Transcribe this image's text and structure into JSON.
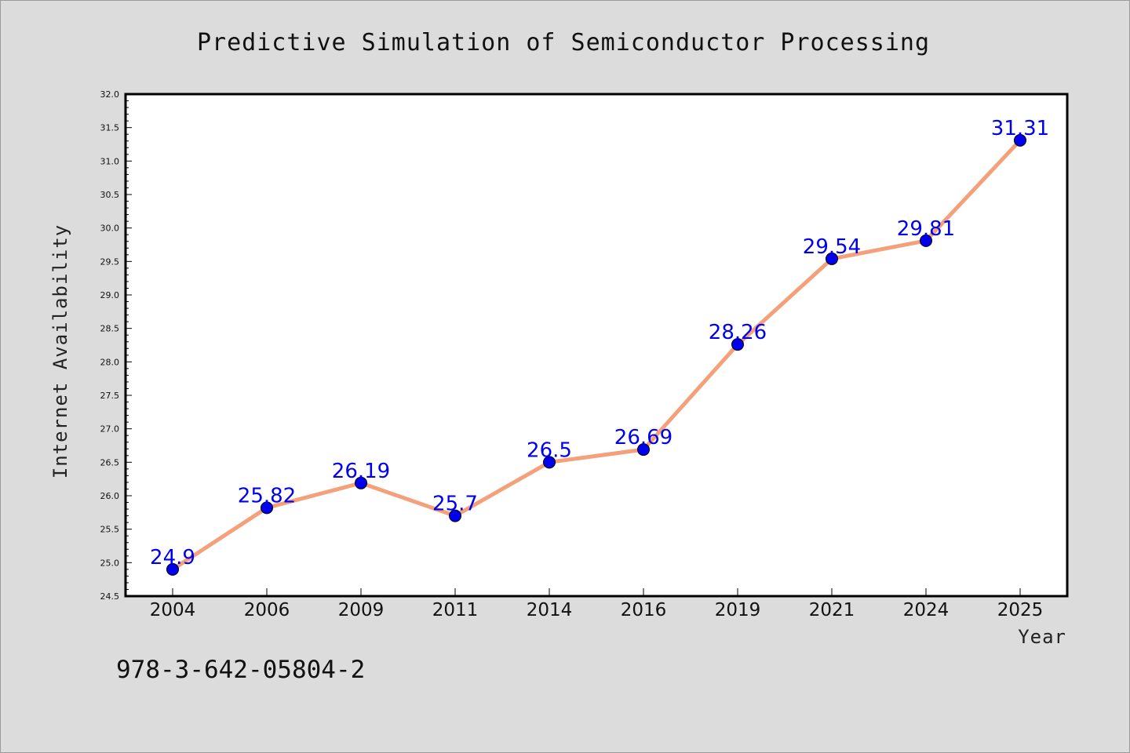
{
  "chart_data": {
    "type": "line",
    "title": "Predictive Simulation of Semiconductor Processing",
    "xlabel": "Year",
    "ylabel": "Internet Availability",
    "categories": [
      "2004",
      "2006",
      "2009",
      "2011",
      "2014",
      "2016",
      "2019",
      "2021",
      "2024",
      "2025"
    ],
    "values": [
      24.9,
      25.82,
      26.19,
      25.7,
      26.5,
      26.69,
      28.26,
      29.54,
      29.81,
      31.31
    ],
    "data_labels": [
      "24.9",
      "25.82",
      "26.19",
      "25.7",
      "26.5",
      "26.69",
      "28.26",
      "29.54",
      "29.81",
      "31.31"
    ],
    "yticks": [
      "24.5",
      "25.0",
      "25.5",
      "26.0",
      "26.5",
      "27.0",
      "27.5",
      "28.0",
      "28.5",
      "29.0",
      "29.5",
      "30.0",
      "30.5",
      "31.0",
      "31.5",
      "32.0"
    ],
    "ylim": [
      24.5,
      32.0
    ],
    "grid": false,
    "legend": "none",
    "colors": {
      "line": "#f4a07a",
      "marker": "#0000ee",
      "label": "#0000ee",
      "plot_bg": "#ffffff",
      "figure_bg": "#dcdcdc"
    }
  },
  "footer": {
    "isbn": "978-3-642-05804-2"
  }
}
